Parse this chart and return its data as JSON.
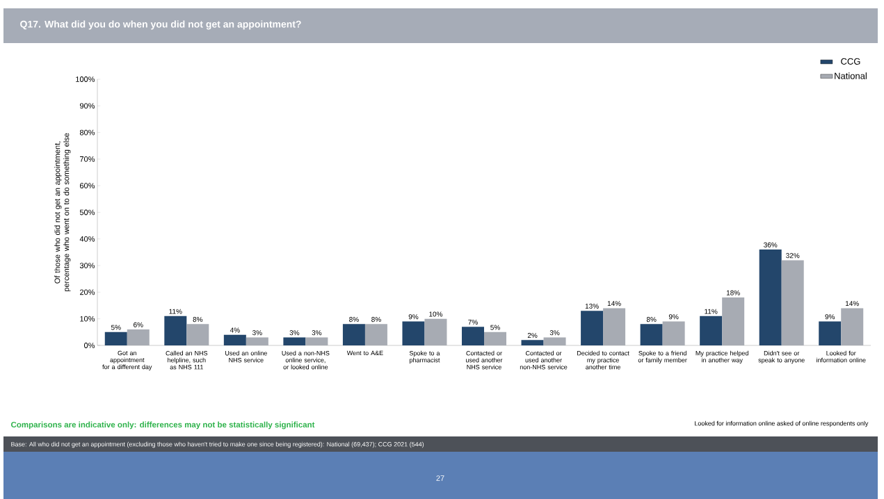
{
  "chart_data": {
    "type": "bar",
    "title": "Q17. What did you do when you did not get an appointment?",
    "ylabel": "Of those who did not get an appointment, percentage who went on to do something else",
    "categories": [
      "Got an appointment for a different day",
      "Called an NHS helpline, such as NHS 111",
      "Used an online NHS service",
      "Used a non-NHS online service, or looked online",
      "Went to A&E",
      "Spoke to a pharmacist",
      "Contacted or used another NHS service",
      "Contacted or used another non-NHS service",
      "Decided to contact my practice another time",
      "Spoke to a friend or family member",
      "My practice helped in another way",
      "Didn't see or speak to anyone",
      "Looked for information online"
    ],
    "series": [
      {
        "name": "CCG",
        "color": "#23466b",
        "values": [
          5,
          11,
          4,
          3,
          8,
          9,
          7,
          2,
          13,
          8,
          11,
          36,
          9
        ],
        "value_labels": [
          "5%",
          "11%",
          "4%",
          "3%",
          "8%",
          "9%",
          "7%",
          "2%",
          "13%",
          "8%",
          "11%",
          "36%",
          "9%"
        ]
      },
      {
        "name": "National",
        "color": "#a7abb3",
        "values": [
          6,
          8,
          3,
          3,
          8,
          10,
          5,
          3,
          14,
          9,
          18,
          32,
          14
        ],
        "value_labels": [
          "6%",
          "8%",
          "3%",
          "3%",
          "8%",
          "10%",
          "5%",
          "3%",
          "14%",
          "9%",
          "18%",
          "32%",
          "14%"
        ]
      }
    ],
    "ylim": [
      0,
      100
    ],
    "yticks": [
      {
        "value": 0,
        "label": "0%"
      },
      {
        "value": 10,
        "label": "10%"
      },
      {
        "value": 20,
        "label": "20%"
      },
      {
        "value": 30,
        "label": "30%"
      },
      {
        "value": 40,
        "label": "40%"
      },
      {
        "value": 50,
        "label": "50%"
      },
      {
        "value": 60,
        "label": "60%"
      },
      {
        "value": 70,
        "label": "70%"
      },
      {
        "value": 80,
        "label": "80%"
      },
      {
        "value": 90,
        "label": "90%"
      },
      {
        "value": 100,
        "label": "100%"
      }
    ],
    "legend": "top right",
    "annotations": [
      "Comparisons are indicative only: differences may not be statistically significant",
      "Looked for information online asked of online respondents only",
      "Base: All who did not get an appointment (excluding those who haven't tried to make one since being registered): National (69,437); CCG 2021 (544)",
      "27"
    ]
  }
}
